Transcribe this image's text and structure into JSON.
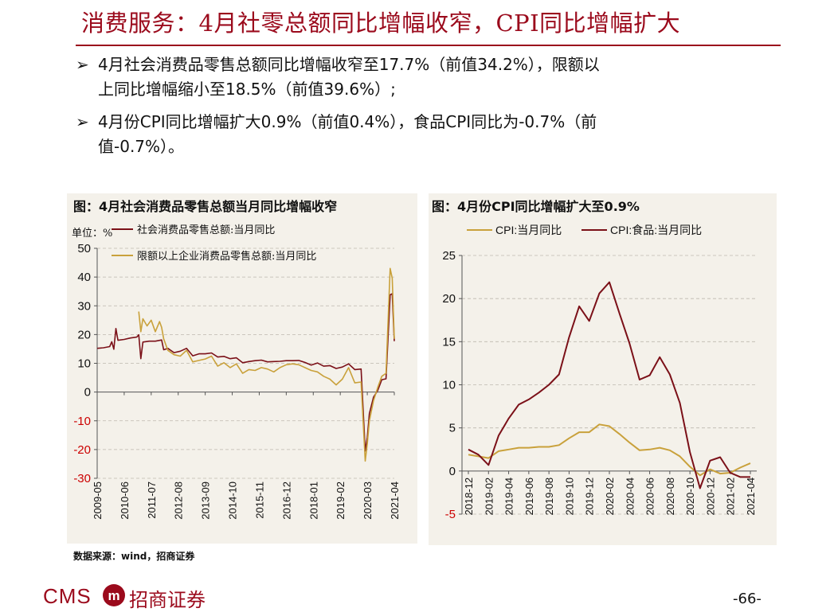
{
  "title": "消费服务：4月社零总额同比增幅收窄，CPI同比增幅扩大",
  "bullets": [
    {
      "marker": "➢",
      "line1": "4月社会消费品零售总额同比增幅收窄至17.7%（前值34.2%），限额以",
      "line2": "上同比增幅缩小至18.5%（前值39.6%）;"
    },
    {
      "marker": "➢",
      "line1": "4月份CPI同比增幅扩大0.9%（前值0.4%），食品CPI同比为-0.7%（前",
      "line2": "值-0.7%）。"
    }
  ],
  "colors": {
    "brand": "#9b0a1c",
    "maroon": "#7b1018",
    "gold": "#c9a13b",
    "panel_bg": "#f4f1ea",
    "axis_negative": "#cc0000"
  },
  "chart_data": [
    {
      "type": "line",
      "title": "图：4月社会消费品零售总额当月同比增幅收窄",
      "unit_label": "单位：%",
      "ylim": [
        -30,
        50
      ],
      "yticks": [
        50,
        40,
        30,
        20,
        10,
        0,
        -10,
        -20,
        -30
      ],
      "grid": true,
      "legend": "top-left",
      "x_start": "2009-05",
      "x_end": "2021-04",
      "xticks": [
        "2009-05",
        "2010-06",
        "2011-07",
        "2012-08",
        "2013-09",
        "2014-10",
        "2015-11",
        "2016-12",
        "2018-01",
        "2019-02",
        "2020-03",
        "2021-04"
      ],
      "series": [
        {
          "name": "社会消费品零售总额:当月同比",
          "color": "#7b1018",
          "points": [
            [
              "2009-05",
              15.2
            ],
            [
              "2009-08",
              15.4
            ],
            [
              "2009-11",
              15.8
            ],
            [
              "2009-12",
              17.5
            ],
            [
              "2010-01",
              14.9
            ],
            [
              "2010-02",
              22.1
            ],
            [
              "2010-03",
              18.0
            ],
            [
              "2010-06",
              18.3
            ],
            [
              "2010-09",
              18.8
            ],
            [
              "2010-12",
              19.1
            ],
            [
              "2011-01",
              19.9
            ],
            [
              "2011-02",
              11.6
            ],
            [
              "2011-03",
              17.4
            ],
            [
              "2011-06",
              17.7
            ],
            [
              "2011-09",
              17.7
            ],
            [
              "2011-12",
              18.1
            ],
            [
              "2012-01",
              14.7
            ],
            [
              "2012-03",
              15.2
            ],
            [
              "2012-06",
              13.7
            ],
            [
              "2012-09",
              14.2
            ],
            [
              "2012-12",
              15.2
            ],
            [
              "2013-03",
              12.6
            ],
            [
              "2013-06",
              13.3
            ],
            [
              "2013-09",
              13.3
            ],
            [
              "2013-12",
              13.6
            ],
            [
              "2014-03",
              12.2
            ],
            [
              "2014-06",
              12.4
            ],
            [
              "2014-09",
              11.6
            ],
            [
              "2014-12",
              11.9
            ],
            [
              "2015-03",
              10.2
            ],
            [
              "2015-06",
              10.6
            ],
            [
              "2015-09",
              10.9
            ],
            [
              "2015-12",
              11.1
            ],
            [
              "2016-03",
              10.5
            ],
            [
              "2016-06",
              10.6
            ],
            [
              "2016-09",
              10.7
            ],
            [
              "2016-12",
              10.9
            ],
            [
              "2017-03",
              10.9
            ],
            [
              "2017-06",
              11.0
            ],
            [
              "2017-09",
              10.3
            ],
            [
              "2017-12",
              9.4
            ],
            [
              "2018-03",
              10.1
            ],
            [
              "2018-06",
              9.0
            ],
            [
              "2018-09",
              9.2
            ],
            [
              "2018-12",
              8.2
            ],
            [
              "2019-03",
              8.7
            ],
            [
              "2019-06",
              9.8
            ],
            [
              "2019-09",
              7.8
            ],
            [
              "2019-12",
              8.0
            ],
            [
              "2020-02",
              -20.5
            ],
            [
              "2020-03",
              -15.8
            ],
            [
              "2020-04",
              -7.5
            ],
            [
              "2020-06",
              -1.8
            ],
            [
              "2020-08",
              0.5
            ],
            [
              "2020-10",
              4.3
            ],
            [
              "2020-12",
              4.6
            ],
            [
              "2021-02",
              33.8
            ],
            [
              "2021-03",
              34.2
            ],
            [
              "2021-04",
              17.7
            ]
          ]
        },
        {
          "name": "限额以上企业消费品零售总额:当月同比",
          "color": "#c9a13b",
          "points": [
            [
              "2011-01",
              28.0
            ],
            [
              "2011-02",
              21.0
            ],
            [
              "2011-03",
              25.5
            ],
            [
              "2011-05",
              23.0
            ],
            [
              "2011-07",
              25.0
            ],
            [
              "2011-09",
              21.0
            ],
            [
              "2011-11",
              24.5
            ],
            [
              "2011-12",
              22.5
            ],
            [
              "2012-01",
              18.5
            ],
            [
              "2012-03",
              14.5
            ],
            [
              "2012-06",
              13.0
            ],
            [
              "2012-09",
              12.5
            ],
            [
              "2012-12",
              14.5
            ],
            [
              "2013-03",
              10.5
            ],
            [
              "2013-06",
              11.0
            ],
            [
              "2013-09",
              11.5
            ],
            [
              "2013-12",
              12.5
            ],
            [
              "2014-03",
              9.0
            ],
            [
              "2014-06",
              10.2
            ],
            [
              "2014-09",
              8.5
            ],
            [
              "2014-12",
              9.8
            ],
            [
              "2015-03",
              6.5
            ],
            [
              "2015-06",
              7.8
            ],
            [
              "2015-09",
              7.5
            ],
            [
              "2015-12",
              8.5
            ],
            [
              "2016-03",
              8.0
            ],
            [
              "2016-06",
              7.0
            ],
            [
              "2016-09",
              8.5
            ],
            [
              "2016-12",
              9.5
            ],
            [
              "2017-03",
              9.8
            ],
            [
              "2017-06",
              9.5
            ],
            [
              "2017-09",
              8.5
            ],
            [
              "2017-12",
              7.5
            ],
            [
              "2018-03",
              7.0
            ],
            [
              "2018-06",
              5.5
            ],
            [
              "2018-09",
              4.5
            ],
            [
              "2018-12",
              2.5
            ],
            [
              "2019-03",
              4.5
            ],
            [
              "2019-06",
              8.5
            ],
            [
              "2019-09",
              3.2
            ],
            [
              "2019-12",
              3.5
            ],
            [
              "2020-02",
              -24.0
            ],
            [
              "2020-03",
              -18.0
            ],
            [
              "2020-04",
              -10.0
            ],
            [
              "2020-06",
              -3.0
            ],
            [
              "2020-08",
              1.5
            ],
            [
              "2020-10",
              5.5
            ],
            [
              "2020-12",
              6.5
            ],
            [
              "2021-02",
              43.0
            ],
            [
              "2021-03",
              39.6
            ],
            [
              "2021-04",
              18.5
            ]
          ]
        }
      ]
    },
    {
      "type": "line",
      "title": "图：4月份CPI同比增幅扩大至0.9%",
      "ylim": [
        -5,
        25
      ],
      "yticks": [
        25,
        20,
        15,
        10,
        5,
        0,
        -5
      ],
      "grid": true,
      "legend": "top",
      "categories": [
        "2018-12",
        "2019-01",
        "2019-02",
        "2019-03",
        "2019-04",
        "2019-05",
        "2019-06",
        "2019-07",
        "2019-08",
        "2019-09",
        "2019-10",
        "2019-11",
        "2019-12",
        "2020-01",
        "2020-02",
        "2020-03",
        "2020-04",
        "2020-05",
        "2020-06",
        "2020-07",
        "2020-08",
        "2020-09",
        "2020-10",
        "2020-11",
        "2020-12",
        "2021-01",
        "2021-02",
        "2021-03",
        "2021-04"
      ],
      "xticks": [
        "2018-12",
        "2019-02",
        "2019-04",
        "2019-06",
        "2019-08",
        "2019-10",
        "2019-12",
        "2020-02",
        "2020-04",
        "2020-06",
        "2020-08",
        "2020-10",
        "2020-12",
        "2021-02",
        "2021-04"
      ],
      "series": [
        {
          "name": "CPI:当月同比",
          "color": "#c9a13b",
          "values": [
            1.9,
            1.7,
            1.5,
            2.3,
            2.5,
            2.7,
            2.7,
            2.8,
            2.8,
            3.0,
            3.8,
            4.5,
            4.5,
            5.4,
            5.2,
            4.3,
            3.3,
            2.4,
            2.5,
            2.7,
            2.4,
            1.7,
            0.5,
            -0.5,
            0.2,
            -0.3,
            -0.2,
            0.4,
            0.9
          ]
        },
        {
          "name": "CPI:食品:当月同比",
          "color": "#7b1018",
          "values": [
            2.5,
            1.9,
            0.7,
            4.1,
            6.1,
            7.7,
            8.3,
            9.1,
            10.0,
            11.2,
            15.5,
            19.1,
            17.4,
            20.6,
            21.9,
            18.3,
            14.8,
            10.6,
            11.1,
            13.2,
            11.2,
            7.9,
            2.2,
            -2.0,
            1.2,
            1.6,
            -0.2,
            -0.7,
            -0.7
          ]
        }
      ]
    }
  ],
  "source": "数据来源：wind，招商证券",
  "footer": {
    "logo_text": "CMS",
    "logo_mark": "m",
    "logo_cn": "招商证券",
    "page": "-66-"
  }
}
